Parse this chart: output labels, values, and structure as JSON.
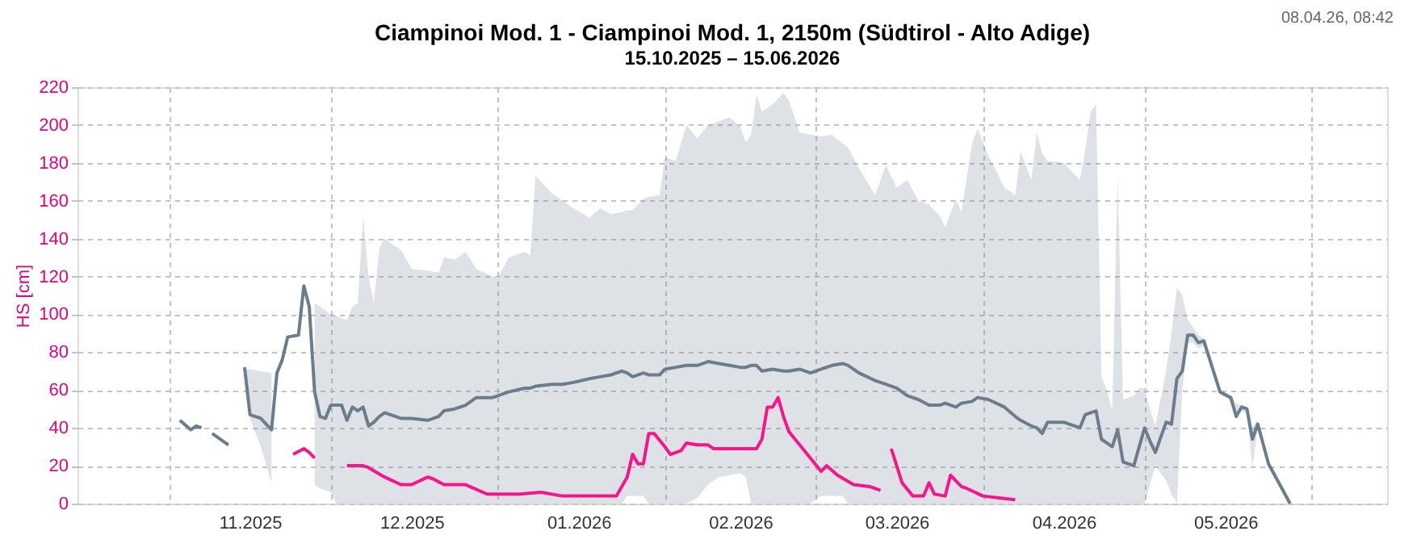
{
  "chart_data": {
    "type": "line",
    "title": "Ciampinoi Mod. 1 - Ciampinoi Mod. 1, 2150m (Südtirol - Alto Adige)",
    "subtitle": "15.10.2025 – 15.06.2026",
    "ylabel": "HS [cm]",
    "annotations": [
      "08.04.26, 08:42"
    ],
    "xlim": [
      "2025-10-15",
      "2026-06-15"
    ],
    "xticks": [
      {
        "value": "2025-11-01",
        "label": null
      },
      {
        "value": "2025-11-16",
        "label": "11.2025"
      },
      {
        "value": "2025-12-01",
        "label": null
      },
      {
        "value": "2025-12-16",
        "label": "12.2025"
      },
      {
        "value": "2026-01-01",
        "label": null
      },
      {
        "value": "2026-01-16",
        "label": "01.2026"
      },
      {
        "value": "2026-02-01",
        "label": null
      },
      {
        "value": "2026-02-15",
        "label": "02.2026"
      },
      {
        "value": "2026-03-01",
        "label": null
      },
      {
        "value": "2026-03-16",
        "label": "03.2026"
      },
      {
        "value": "2026-04-01",
        "label": null
      },
      {
        "value": "2026-04-16",
        "label": "04.2026"
      },
      {
        "value": "2026-05-01",
        "label": null
      },
      {
        "value": "2026-05-16",
        "label": "05.2026"
      },
      {
        "value": "2026-06-01",
        "label": null
      }
    ],
    "ylim": [
      0,
      220
    ],
    "yticks": [
      0,
      20,
      40,
      60,
      80,
      100,
      120,
      140,
      160,
      180,
      200,
      220
    ],
    "grid": true,
    "marker": "none",
    "line_style": "solid",
    "series": [
      {
        "type": "line",
        "color": "#6b7d8c",
        "x": [
          "2025-11-03",
          "2025-11-05",
          "2025-11-06",
          "2025-11-07",
          "2025-11-08",
          "2025-11-09",
          "2025-11-11",
          "2025-11-12",
          "2025-11-14",
          "2025-11-15",
          "2025-11-16",
          "2025-11-18",
          "2025-11-20",
          "2025-11-21",
          "2025-11-22",
          "2025-11-23",
          "2025-11-25",
          "2025-11-26",
          "2025-11-27",
          "2025-11-28",
          "2025-11-29",
          "2025-11-30",
          "2025-12-01",
          "2025-12-02",
          "2025-12-03",
          "2025-12-04",
          "2025-12-05",
          "2025-12-06",
          "2025-12-07",
          "2025-12-08",
          "2025-12-09",
          "2025-12-10",
          "2025-12-11",
          "2025-12-14",
          "2025-12-16",
          "2025-12-19",
          "2025-12-21",
          "2025-12-22",
          "2025-12-24",
          "2025-12-26",
          "2025-12-28",
          "2025-12-31",
          "2026-01-01",
          "2026-01-03",
          "2026-01-06",
          "2026-01-07",
          "2026-01-08",
          "2026-01-11",
          "2026-01-13",
          "2026-01-15",
          "2026-01-18",
          "2026-01-20",
          "2026-01-22",
          "2026-01-24",
          "2026-01-25",
          "2026-01-26",
          "2026-01-28",
          "2026-01-29",
          "2026-01-31",
          "2026-02-01",
          "2026-02-03",
          "2026-02-05",
          "2026-02-07",
          "2026-02-09",
          "2026-02-11",
          "2026-02-13",
          "2026-02-15",
          "2026-02-16",
          "2026-02-17",
          "2026-02-18",
          "2026-02-19",
          "2026-02-21",
          "2026-02-23",
          "2026-02-24",
          "2026-02-26",
          "2026-02-28",
          "2026-03-02",
          "2026-03-04",
          "2026-03-06",
          "2026-03-07",
          "2026-03-09",
          "2026-03-12",
          "2026-03-14",
          "2026-03-16",
          "2026-03-18",
          "2026-03-20",
          "2026-03-22",
          "2026-03-24",
          "2026-03-25",
          "2026-03-27",
          "2026-03-28",
          "2026-03-30",
          "2026-03-31",
          "2026-04-02",
          "2026-04-05",
          "2026-04-07",
          "2026-04-08",
          "2026-04-10",
          "2026-04-11",
          "2026-04-12",
          "2026-04-13",
          "2026-04-16",
          "2026-04-19",
          "2026-04-20",
          "2026-04-21",
          "2026-04-22",
          "2026-04-23",
          "2026-04-24",
          "2026-04-25",
          "2026-04-26",
          "2026-04-27",
          "2026-04-29",
          "2026-04-30",
          "2026-05-01",
          "2026-05-02",
          "2026-05-03",
          "2026-05-05",
          "2026-05-06",
          "2026-05-07",
          "2026-05-08",
          "2026-05-09",
          "2026-05-10",
          "2026-05-11",
          "2026-05-12",
          "2026-05-15",
          "2026-05-17",
          "2026-05-18",
          "2026-05-19",
          "2026-05-20",
          "2026-05-21",
          "2026-05-22",
          "2026-05-24",
          "2026-05-28"
        ],
        "values": [
          44,
          39,
          41,
          40,
          null,
          37,
          33,
          31,
          null,
          72,
          47,
          45,
          39,
          69,
          76,
          88,
          89,
          115,
          104,
          59,
          46,
          45,
          52,
          52,
          52,
          44,
          51,
          49,
          51,
          41,
          43,
          46,
          48,
          45,
          45,
          44,
          46,
          49,
          50,
          52,
          56,
          56,
          57,
          59,
          61,
          61,
          62,
          63,
          63,
          64,
          66,
          67,
          68,
          70,
          69,
          67,
          69,
          68,
          68,
          71,
          72,
          73,
          73,
          75,
          74,
          73,
          72,
          72,
          73,
          73,
          70,
          71,
          70,
          70,
          71,
          69,
          71,
          73,
          74,
          73,
          69,
          65,
          63,
          61,
          57,
          55,
          52,
          52,
          53,
          51,
          53,
          54,
          56,
          55,
          51,
          46,
          44,
          41,
          40,
          37,
          43,
          43,
          40,
          47,
          48,
          49,
          34,
          32,
          30,
          39,
          22,
          20,
          30,
          40,
          33,
          27,
          43,
          42,
          66,
          70,
          89,
          89,
          85,
          86,
          59,
          56,
          46,
          51,
          50,
          34,
          42,
          21,
          0
        ],
        "lower": [
          null,
          null,
          null,
          null,
          null,
          null,
          null,
          null,
          null,
          70,
          45,
          30,
          11,
          null,
          null,
          null,
          null,
          null,
          null,
          10,
          8,
          7,
          6,
          0,
          0,
          0,
          0,
          0,
          0,
          0,
          0,
          0,
          0,
          0,
          0,
          0,
          0,
          0,
          0,
          0,
          0,
          0,
          0,
          0,
          0,
          0,
          0,
          0,
          0,
          0,
          0,
          0,
          0,
          0,
          4,
          4,
          4,
          0,
          0,
          0,
          0,
          0,
          3,
          10,
          14,
          15,
          16,
          14,
          0,
          0,
          0,
          0,
          0,
          0,
          0,
          0,
          4,
          4,
          4,
          0,
          0,
          0,
          0,
          0,
          0,
          0,
          0,
          0,
          0,
          0,
          0,
          0,
          0,
          0,
          0,
          0,
          0,
          0,
          0,
          0,
          0,
          0,
          0,
          0,
          0,
          0,
          0,
          0,
          0,
          0,
          0,
          0,
          0,
          0,
          10,
          20,
          12,
          5,
          0,
          60,
          85,
          85,
          82,
          83,
          58,
          54,
          45,
          49,
          48,
          19,
          40,
          20,
          null
        ],
        "upper": [
          null,
          null,
          null,
          null,
          null,
          null,
          null,
          null,
          null,
          71,
          71,
          70,
          69,
          null,
          null,
          null,
          null,
          null,
          null,
          106,
          104,
          102,
          100,
          99,
          98,
          97,
          104,
          106,
          152,
          120,
          106,
          135,
          140,
          134,
          124,
          123,
          122,
          130,
          129,
          133,
          124,
          120,
          119,
          130,
          133,
          131,
          173,
          164,
          160,
          156,
          151,
          156,
          153,
          154,
          155,
          155,
          161,
          162,
          163,
          183,
          181,
          200,
          193,
          200,
          202,
          204,
          199,
          191,
          195,
          216,
          207,
          211,
          217,
          213,
          196,
          195,
          194,
          195,
          190,
          188,
          177,
          163,
          179,
          167,
          171,
          160,
          158,
          152,
          146,
          161,
          154,
          190,
          198,
          184,
          167,
          163,
          186,
          171,
          196,
          185,
          181,
          180,
          171,
          187,
          207,
          211,
          67,
          60,
          49,
          173,
          55,
          57,
          61,
          61,
          50,
          41,
          70,
          90,
          114,
          110,
          97,
          93,
          89,
          87,
          60,
          57,
          53,
          52,
          51,
          40,
          44,
          22,
          null
        ]
      },
      {
        "type": "line",
        "color": "#f7158a",
        "x": [
          "2025-11-24",
          "2025-11-26",
          "2025-11-27",
          "2025-11-28",
          "2025-12-01",
          "2025-12-04",
          "2025-12-07",
          "2025-12-08",
          "2025-12-11",
          "2025-12-14",
          "2025-12-16",
          "2025-12-19",
          "2025-12-20",
          "2025-12-22",
          "2025-12-26",
          "2025-12-30",
          "2026-01-05",
          "2026-01-09",
          "2026-01-13",
          "2026-01-23",
          "2026-01-25",
          "2026-01-26",
          "2026-01-27",
          "2026-01-28",
          "2026-01-29",
          "2026-01-30",
          "2026-02-01",
          "2026-02-02",
          "2026-02-04",
          "2026-02-05",
          "2026-02-07",
          "2026-02-09",
          "2026-02-10",
          "2026-02-18",
          "2026-02-19",
          "2026-02-20",
          "2026-02-21",
          "2026-02-22",
          "2026-02-23",
          "2026-02-24",
          "2026-02-26",
          "2026-02-28",
          "2026-03-02",
          "2026-03-03",
          "2026-03-05",
          "2026-03-08",
          "2026-03-11",
          "2026-03-13",
          "2026-03-14",
          "2026-03-15",
          "2026-03-17",
          "2026-03-19",
          "2026-03-21",
          "2026-03-22",
          "2026-03-23",
          "2026-03-25",
          "2026-03-26",
          "2026-03-28",
          "2026-03-29",
          "2026-04-01",
          "2026-04-04",
          "2026-04-07"
        ],
        "values": [
          26,
          29,
          27,
          24,
          null,
          20,
          20,
          19,
          14,
          10,
          10,
          14,
          13,
          10,
          10,
          5,
          5,
          6,
          4,
          4,
          14,
          26,
          21,
          21,
          37,
          37,
          30,
          26,
          28,
          32,
          31,
          31,
          29,
          29,
          34,
          51,
          51,
          56,
          46,
          38,
          31,
          24,
          17,
          20,
          15,
          10,
          9,
          7,
          null,
          29,
          11,
          4,
          4,
          11,
          5,
          4,
          15,
          9,
          8,
          4,
          3,
          2
        ]
      }
    ]
  }
}
